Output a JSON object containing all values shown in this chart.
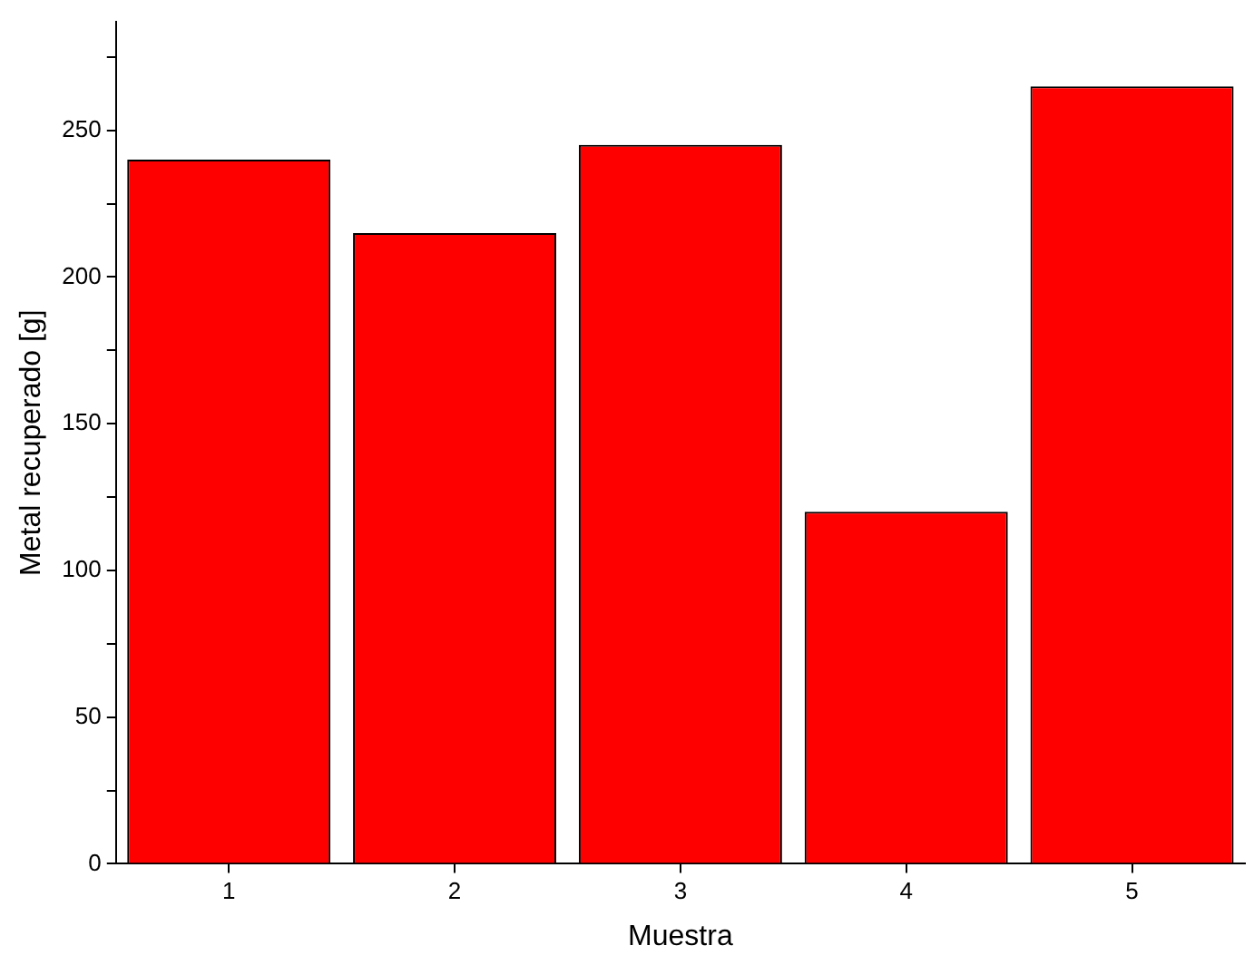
{
  "chart_data": {
    "type": "bar",
    "xlabel": "Muestra",
    "ylabel": "Metal recuperado [g]",
    "categories": [
      "1",
      "2",
      "3",
      "4",
      "5"
    ],
    "values": [
      240,
      215,
      245,
      120,
      265
    ],
    "color": "#ff0000",
    "ylim": [
      0,
      287
    ],
    "yticks": [
      0,
      {
        "value": 25,
        "label": null
      },
      50,
      {
        "value": 75,
        "label": null
      },
      100,
      {
        "value": 125,
        "label": null
      },
      150,
      {
        "value": 175,
        "label": null
      },
      200,
      {
        "value": 225,
        "label": null
      },
      250,
      {
        "value": 275,
        "label": null
      }
    ],
    "grid": false,
    "legend": false
  }
}
